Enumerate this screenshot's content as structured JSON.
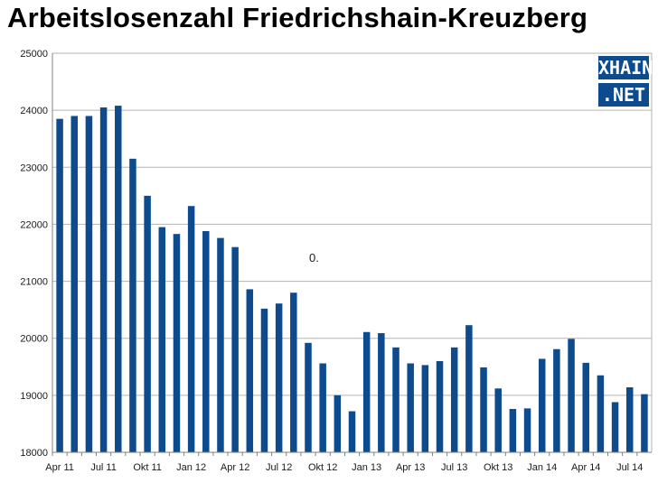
{
  "title": "Arbeitslosenzahl Friedrichshain-Kreuzberg",
  "logo": {
    "line1": "XHAIN",
    "line2": ".NET"
  },
  "colors": {
    "bar": "#0d4b8e",
    "grid": "#b3b3b3",
    "axis": "#808080",
    "logo_bg": "#0d4b8e"
  },
  "chart_data": {
    "type": "bar",
    "title": "Arbeitslosenzahl Friedrichshain-Kreuzberg",
    "xlabel": "",
    "ylabel": "",
    "ylim": [
      18000,
      25000
    ],
    "yticks": [
      18000,
      19000,
      20000,
      21000,
      22000,
      23000,
      24000,
      25000
    ],
    "grid": true,
    "legend": "none",
    "annotation": "0.",
    "categories": [
      "Apr 11",
      "May 11",
      "Jun 11",
      "Jul 11",
      "Aug 11",
      "Sep 11",
      "Okt 11",
      "Nov 11",
      "Dec 11",
      "Jan 12",
      "Feb 12",
      "Mar 12",
      "Apr 12",
      "May 12",
      "Jun 12",
      "Jul 12",
      "Aug 12",
      "Sep 12",
      "Okt 12",
      "Nov 12",
      "Dec 12",
      "Jan 13",
      "Feb 13",
      "Mar 13",
      "Apr 13",
      "May 13",
      "Jun 13",
      "Jul 13",
      "Aug 13",
      "Sep 13",
      "Okt 13",
      "Nov 13",
      "Dec 13",
      "Jan 14",
      "Feb 14",
      "Mar 14",
      "Apr 14",
      "May 14",
      "Jun 14",
      "Jul 14",
      "Aug 14"
    ],
    "xtick_labels": [
      "Apr 11",
      "Jul 11",
      "Okt 11",
      "Jan 12",
      "Apr 12",
      "Jul 12",
      "Okt 12",
      "Jan 13",
      "Apr 13",
      "Jul 13",
      "Okt 13",
      "Jan 14",
      "Apr 14",
      "Jul 14"
    ],
    "values": [
      23850,
      23900,
      23900,
      24050,
      24080,
      23150,
      22500,
      21950,
      21830,
      22320,
      21880,
      21760,
      21600,
      20860,
      20520,
      20610,
      20800,
      19920,
      19560,
      19000,
      18720,
      20110,
      20090,
      19840,
      19560,
      19530,
      19600,
      19840,
      20230,
      19490,
      19120,
      18760,
      18770,
      19640,
      19810,
      19990,
      19570,
      19350,
      18880,
      19140,
      19020
    ]
  }
}
